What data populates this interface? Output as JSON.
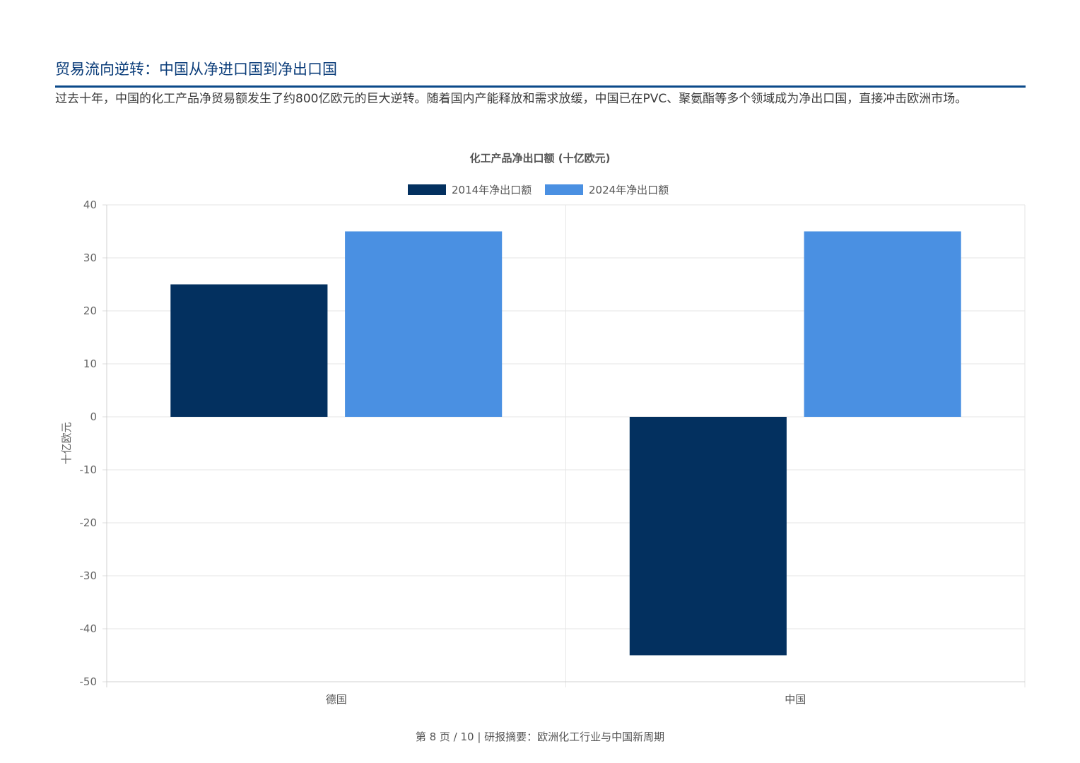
{
  "page": {
    "title": "贸易流向逆转：中国从净进口国到净出口国",
    "intro": "过去十年，中国的化工产品净贸易额发生了约800亿欧元的巨大逆转。随着国内产能释放和需求放缓，中国已在PVC、聚氨酯等多个领域成为净出口国，直接冲击欧洲市场。",
    "footer": "第 8 页 / 10 | 研报摘要：欧洲化工行业与中国新周期"
  },
  "chart_data": {
    "type": "bar",
    "title": "化工产品净出口额 (十亿欧元)",
    "ylabel": "十亿欧元",
    "xlabel": "",
    "categories": [
      "德国",
      "中国"
    ],
    "series": [
      {
        "name": "2014年净出口额",
        "values": [
          25,
          -45
        ],
        "color": "#03305f"
      },
      {
        "name": "2024年净出口额",
        "values": [
          35,
          35
        ],
        "color": "#4a90e2"
      }
    ],
    "ylim": [
      -50,
      40
    ],
    "yticks": [
      40,
      30,
      20,
      10,
      0,
      -10,
      -20,
      -30,
      -40,
      -50
    ],
    "legend_position": "top",
    "grid": true
  }
}
